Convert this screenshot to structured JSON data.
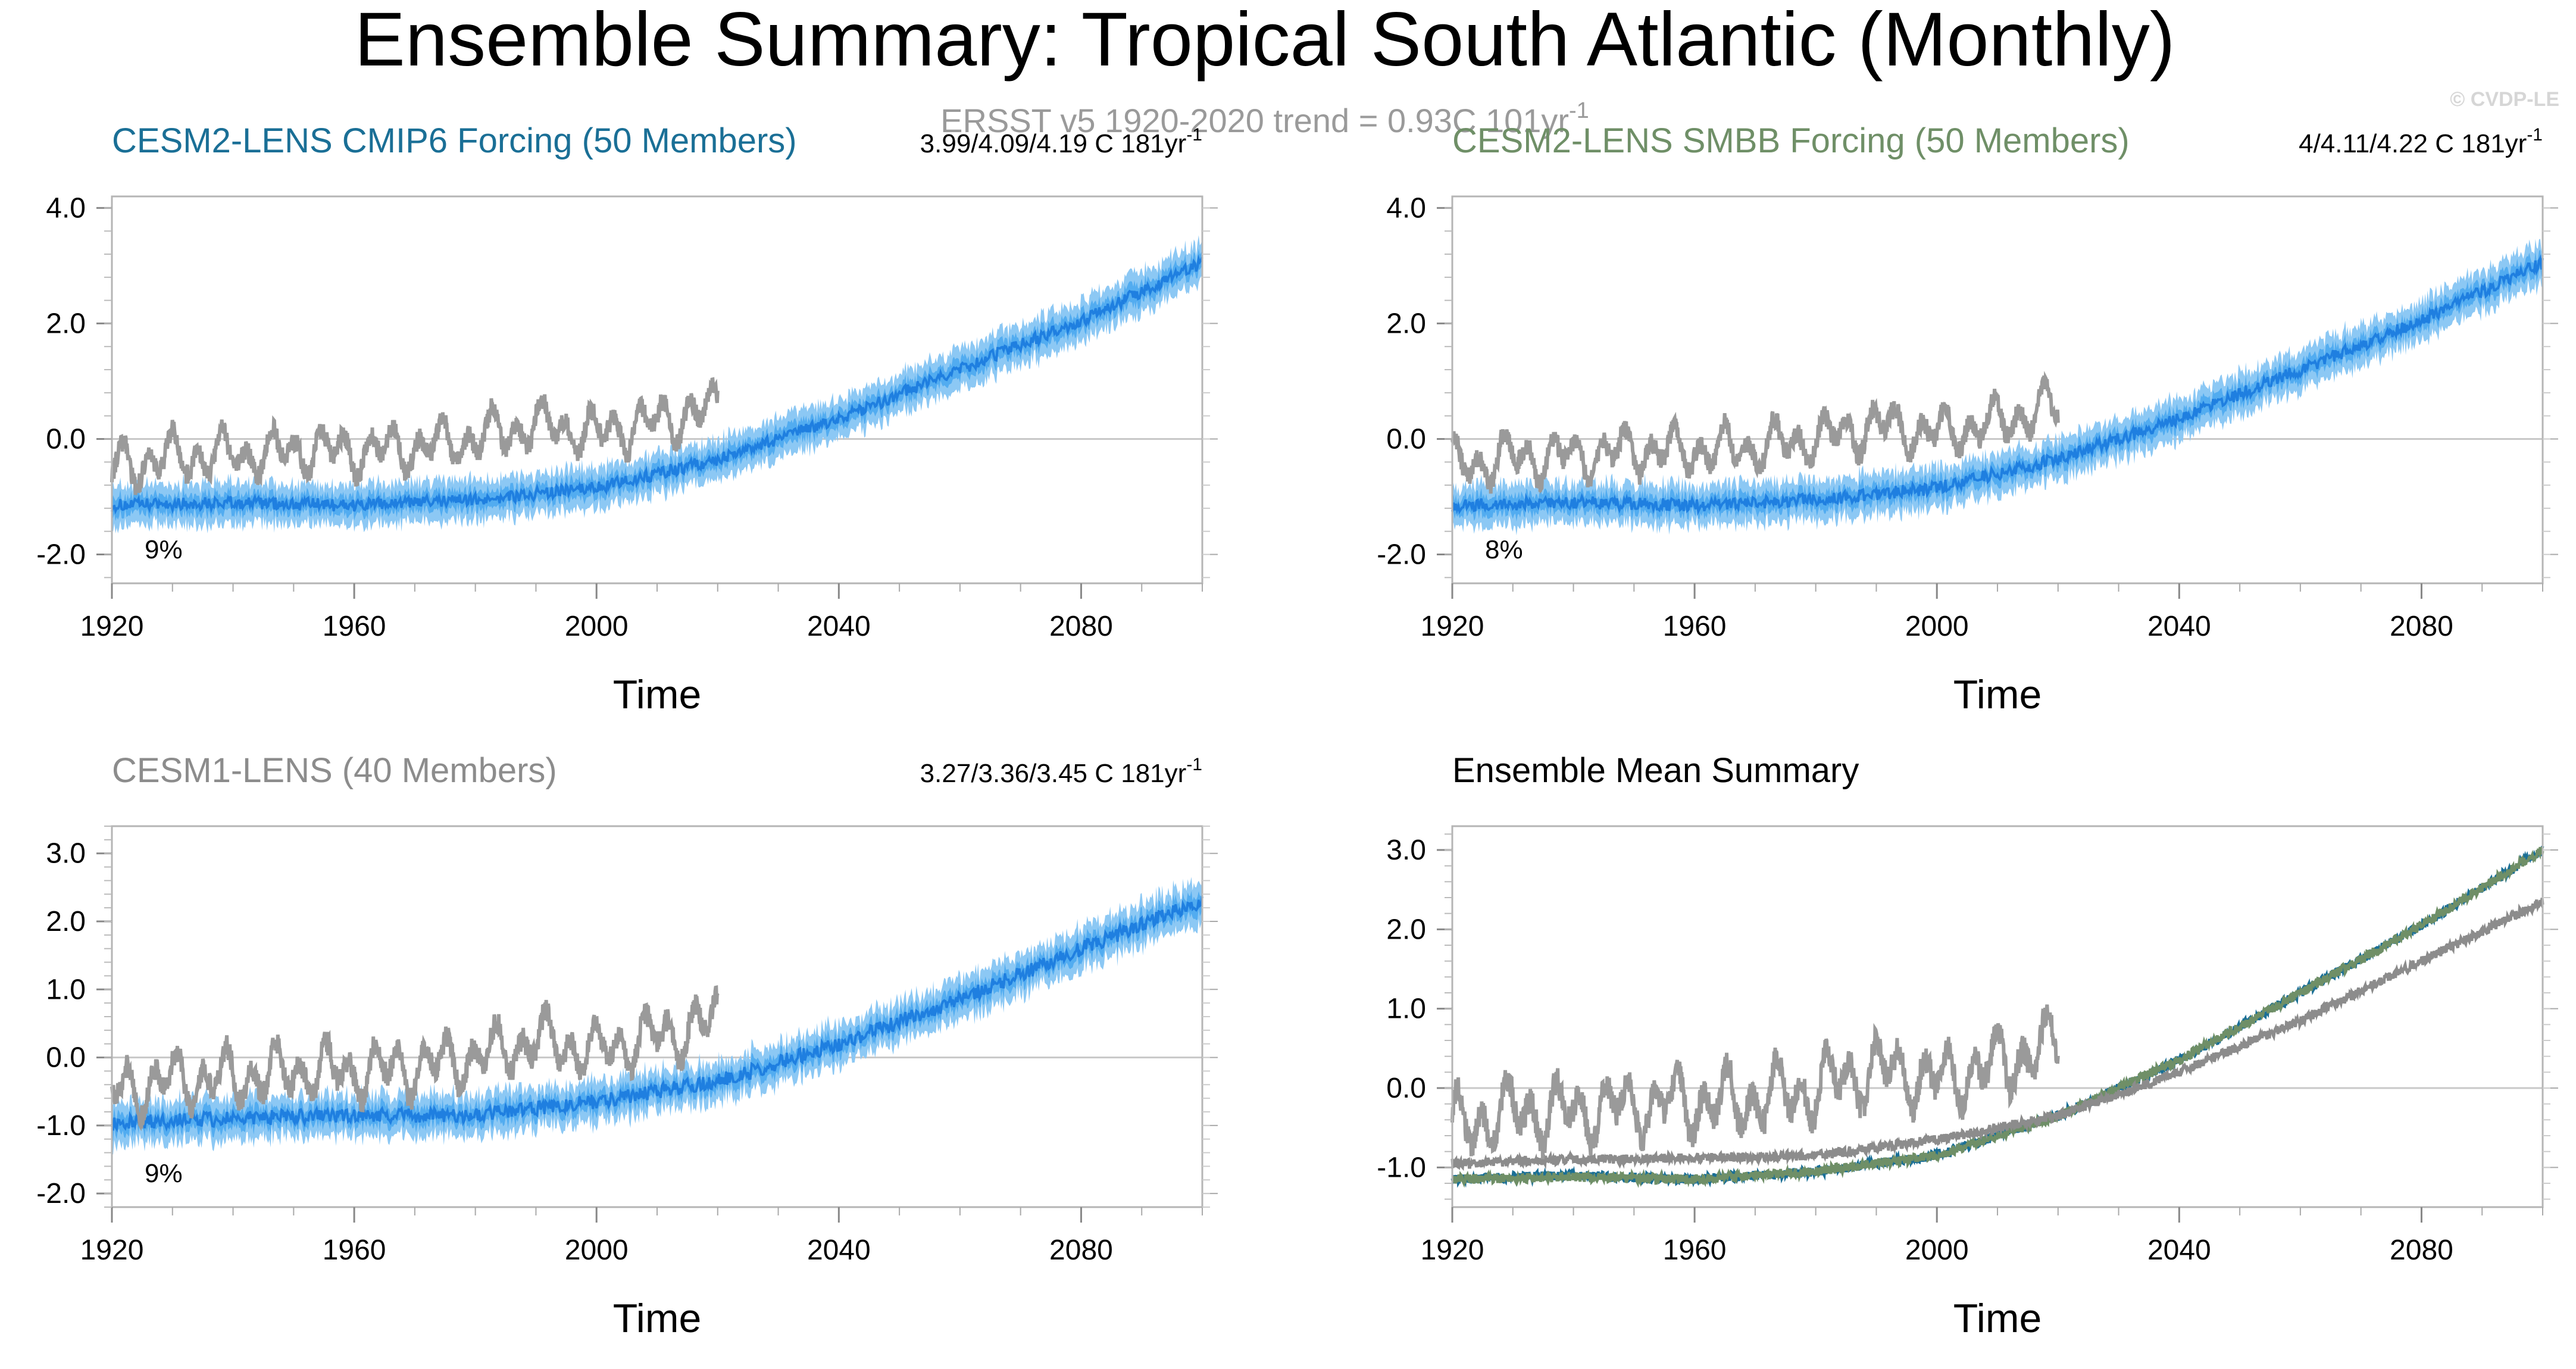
{
  "figure": {
    "title": "Ensemble Summary: Tropical South Atlantic (Monthly)",
    "obs_note": "ERSST v5 1920-2020 trend = 0.93C 101yr",
    "obs_note_sup": "-1",
    "copyright": "© CVDP-LE"
  },
  "colors": {
    "cesm2_cmip6": "#1a6f96",
    "cesm2_smbb": "#6f8f67",
    "cesm1": "#8c8c8c",
    "obs": "#9a9a9a",
    "ens_spread": "#8cc8f4",
    "ens_range": "#52acf0",
    "ens_mean": "#1f7fe0"
  },
  "chart_data": [
    {
      "type": "line",
      "title": "CESM2-LENS CMIP6 Forcing (50 Members)",
      "trend_label": "3.99/4.09/4.19 C 181yr",
      "trend_sup": "-1",
      "percent_label": "9%",
      "xlabel": "Time",
      "ylabel": "",
      "xlim": [
        1920,
        2100
      ],
      "ylim": [
        -2.5,
        4.2
      ],
      "xticks": [
        1920,
        1960,
        2000,
        2040,
        2080
      ],
      "yticks": [
        -2.0,
        0.0,
        2.0,
        4.0
      ],
      "ytick_labels": [
        "-2.0",
        "0.0",
        "2.0",
        "4.0"
      ],
      "series": [
        {
          "role": "ensemble",
          "x": [
            1920,
            1940,
            1960,
            1980,
            2000,
            2020,
            2040,
            2060,
            2080,
            2100
          ],
          "values": [
            -1.15,
            -1.1,
            -1.15,
            -1.05,
            -0.85,
            -0.35,
            0.35,
            1.2,
            2.05,
            3.05
          ],
          "spread": 0.35
        },
        {
          "role": "observations",
          "x": [
            1920,
            1930,
            1940,
            1950,
            1960,
            1970,
            1980,
            1990,
            2000,
            2010,
            2020
          ],
          "values": [
            -0.5,
            -0.3,
            -0.3,
            -0.2,
            -0.2,
            -0.15,
            0.0,
            0.25,
            0.1,
            0.3,
            0.55
          ],
          "amplitude": 0.45
        }
      ]
    },
    {
      "type": "line",
      "title": "CESM2-LENS SMBB Forcing (50 Members)",
      "trend_label": "4/4.11/4.22 C 181yr",
      "trend_sup": "-1",
      "percent_label": "8%",
      "xlabel": "Time",
      "ylabel": "",
      "xlim": [
        1920,
        2100
      ],
      "ylim": [
        -2.5,
        4.2
      ],
      "xticks": [
        1920,
        1960,
        2000,
        2040,
        2080
      ],
      "yticks": [
        -2.0,
        0.0,
        2.0,
        4.0
      ],
      "ytick_labels": [
        "-2.0",
        "0.0",
        "2.0",
        "4.0"
      ],
      "series": [
        {
          "role": "ensemble",
          "x": [
            1920,
            1940,
            1960,
            1980,
            2000,
            2020,
            2040,
            2060,
            2080,
            2100
          ],
          "values": [
            -1.15,
            -1.1,
            -1.15,
            -1.05,
            -0.85,
            -0.35,
            0.35,
            1.2,
            2.05,
            3.05
          ],
          "spread": 0.35
        },
        {
          "role": "observations",
          "x": [
            1920,
            1930,
            1940,
            1950,
            1960,
            1970,
            1980,
            1990,
            2000,
            2010,
            2020
          ],
          "values": [
            -0.5,
            -0.3,
            -0.3,
            -0.2,
            -0.2,
            -0.15,
            0.0,
            0.25,
            0.1,
            0.3,
            0.55
          ],
          "amplitude": 0.45
        }
      ]
    },
    {
      "type": "line",
      "title": "CESM1-LENS (40 Members)",
      "trend_label": "3.27/3.36/3.45 C 181yr",
      "trend_sup": "-1",
      "percent_label": "9%",
      "xlabel": "Time",
      "ylabel": "",
      "xlim": [
        1920,
        2100
      ],
      "ylim": [
        -2.2,
        3.4
      ],
      "xticks": [
        1920,
        1960,
        2000,
        2040,
        2080
      ],
      "yticks": [
        -2.0,
        -1.0,
        0.0,
        1.0,
        2.0,
        3.0
      ],
      "ytick_labels": [
        "-2.0",
        "-1.0",
        "0.0",
        "1.0",
        "2.0",
        "3.0"
      ],
      "series": [
        {
          "role": "ensemble",
          "x": [
            1920,
            1940,
            1960,
            1980,
            2000,
            2020,
            2040,
            2060,
            2080,
            2100
          ],
          "values": [
            -0.95,
            -0.9,
            -0.85,
            -0.85,
            -0.65,
            -0.35,
            0.2,
            0.85,
            1.6,
            2.3
          ],
          "spread": 0.3
        },
        {
          "role": "observations",
          "x": [
            1920,
            1930,
            1940,
            1950,
            1960,
            1970,
            1980,
            1990,
            2000,
            2010,
            2020
          ],
          "values": [
            -0.5,
            -0.3,
            -0.3,
            -0.2,
            -0.2,
            -0.15,
            0.0,
            0.25,
            0.1,
            0.3,
            0.55
          ],
          "amplitude": 0.45
        }
      ]
    },
    {
      "type": "line",
      "title": "Ensemble Mean Summary",
      "trend_label": "",
      "trend_sup": "",
      "percent_label": "",
      "xlabel": "Time",
      "ylabel": "",
      "xlim": [
        1920,
        2100
      ],
      "ylim": [
        -1.5,
        3.3
      ],
      "xticks": [
        1920,
        1960,
        2000,
        2040,
        2080
      ],
      "yticks": [
        -1.0,
        0.0,
        1.0,
        2.0,
        3.0
      ],
      "ytick_labels": [
        "-1.0",
        "0.0",
        "1.0",
        "2.0",
        "3.0"
      ],
      "series": [
        {
          "role": "cesm2_cmip6",
          "x": [
            1920,
            1940,
            1960,
            1980,
            2000,
            2020,
            2040,
            2060,
            2080,
            2100
          ],
          "values": [
            -1.15,
            -1.1,
            -1.15,
            -1.05,
            -0.85,
            -0.35,
            0.35,
            1.2,
            2.05,
            3.0
          ]
        },
        {
          "role": "cesm2_smbb",
          "x": [
            1920,
            1940,
            1960,
            1980,
            2000,
            2020,
            2040,
            2060,
            2080,
            2100
          ],
          "values": [
            -1.15,
            -1.12,
            -1.15,
            -1.05,
            -0.85,
            -0.35,
            0.35,
            1.2,
            2.05,
            3.0
          ]
        },
        {
          "role": "cesm1",
          "x": [
            1920,
            1940,
            1960,
            1980,
            2000,
            2020,
            2040,
            2060,
            2080,
            2100
          ],
          "values": [
            -0.95,
            -0.9,
            -0.88,
            -0.85,
            -0.65,
            -0.35,
            0.2,
            0.85,
            1.6,
            2.35
          ]
        },
        {
          "role": "observations",
          "x": [
            1920,
            1930,
            1940,
            1950,
            1960,
            1970,
            1980,
            1990,
            2000,
            2010,
            2020
          ],
          "values": [
            -0.5,
            -0.3,
            -0.3,
            -0.2,
            -0.2,
            -0.15,
            0.0,
            0.25,
            0.1,
            0.3,
            0.55
          ],
          "amplitude": 0.45
        }
      ]
    }
  ]
}
